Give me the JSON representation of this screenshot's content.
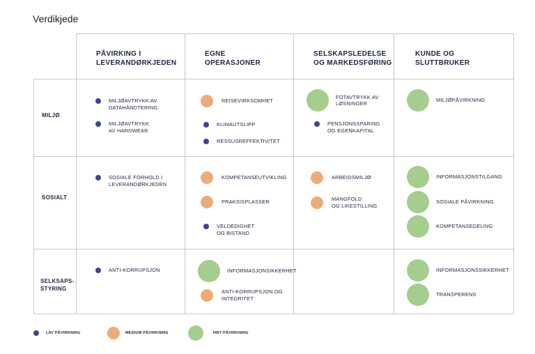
{
  "title": "Verdikjede",
  "columns": [
    "PÅVIRKING I\nLEVERANDØRKJEDEN",
    "EGNE\nOPERASJONER",
    "SELSKAPSLEDELSE\nOG MARKEDSFØRING",
    "KUNDE OG\nSLUTTBRUKER"
  ],
  "rows": [
    "MILJØ",
    "SOSIALT",
    "SELKSAPS-\nSTYRING"
  ],
  "cells": {
    "miljo_lev": [
      {
        "level": "low",
        "text": "MILJØAVTRYKK AV\nDATAHÅNDTERING"
      },
      {
        "level": "low",
        "text": "MILJØAVTRYKK\nAV HARDWEAR"
      }
    ],
    "miljo_egne": [
      {
        "level": "medium",
        "text": "REISEVIRKSOMHET"
      },
      {
        "level": "low",
        "text": "KLIMAUTSLIPP"
      },
      {
        "level": "low",
        "text": "RESSUSREFFEKTIVITET"
      }
    ],
    "miljo_sel": [
      {
        "level": "high",
        "text": "FOTAVTRYKK AV\nLØSNINGER"
      },
      {
        "level": "low",
        "text": "PENSJONSSPARING\nOG EGENKAPITAL"
      }
    ],
    "miljo_kunde": [
      {
        "level": "high",
        "text": "MILJØPÅVIRKNING"
      }
    ],
    "sos_lev": [
      {
        "level": "low",
        "text": "SOSIALE FORHOLD I\nLEVERANDØRKJEDEN"
      }
    ],
    "sos_egne": [
      {
        "level": "medium",
        "text": "KOMPETANSEUTVIKLING"
      },
      {
        "level": "medium",
        "text": "PRAKSISPLASSER"
      },
      {
        "level": "low",
        "text": "VELDEDIGHET\nOG BISTAND"
      }
    ],
    "sos_sel": [
      {
        "level": "medium",
        "text": "ARBEIDSMILJØ"
      },
      {
        "level": "medium",
        "text": "MANGFOLD\nOG LIKESTILLING"
      }
    ],
    "sos_kunde": [
      {
        "level": "high",
        "text": "INFORMASJONSTILGANG"
      },
      {
        "level": "high",
        "text": "SOSIALE PÅVIRKNING"
      },
      {
        "level": "high",
        "text": "KOMPETANSEDELING"
      }
    ],
    "sty_lev": [
      {
        "level": "low",
        "text": "ANTI-KORRUPSJON"
      }
    ],
    "sty_egne": [
      {
        "level": "high",
        "text": "INFORMASJONSIKKERHET"
      },
      {
        "level": "medium",
        "text": "ANTI-KORRUPSJON OG\nINTEGRITET"
      }
    ],
    "sty_kunde": [
      {
        "level": "high",
        "text": "INFORMASJONSSIKKERHET"
      },
      {
        "level": "high",
        "text": "TRANSPERENS"
      }
    ]
  },
  "legend": [
    {
      "level": "low",
      "label": "LAV PÅVIRKNING"
    },
    {
      "level": "medium",
      "label": "MEDIUM PÅVIRKNING"
    },
    {
      "level": "high",
      "label": "HØY PÅVIRKNING"
    }
  ],
  "colors": {
    "low": "#3d4591",
    "medium": "#ecac7a",
    "high": "#a5cd8d",
    "grid": "#c8c8c8"
  }
}
